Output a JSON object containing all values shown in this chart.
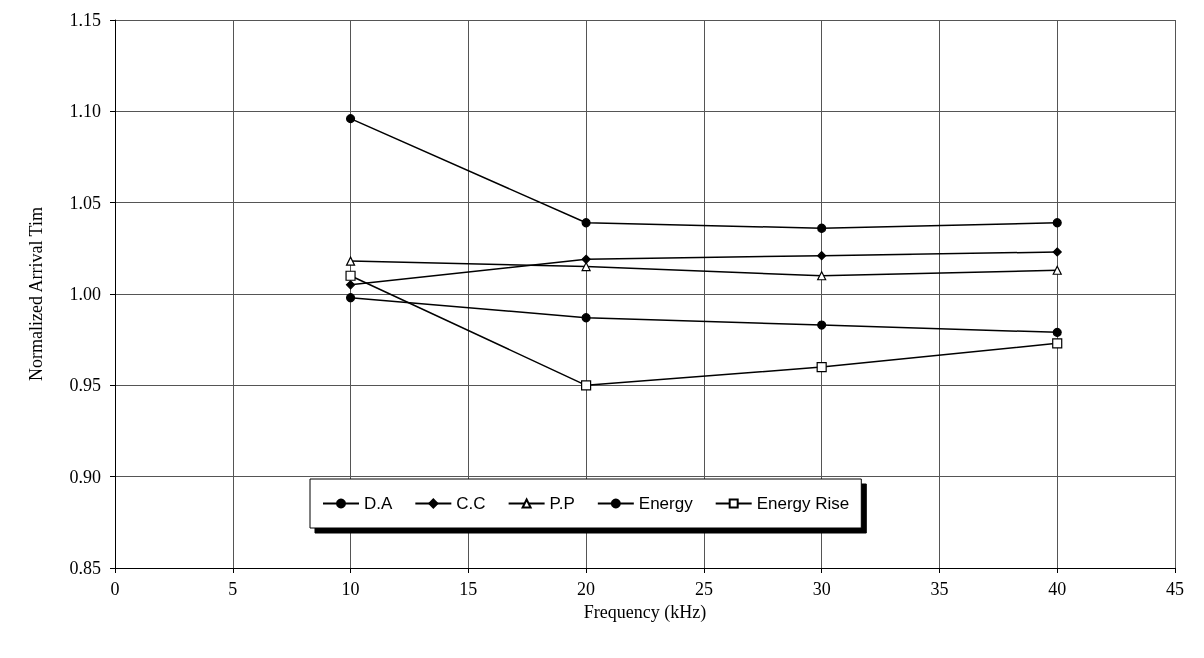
{
  "chart_data": {
    "type": "line",
    "xlabel": "Frequency (kHz)",
    "ylabel": "Normalized Arrival Tim",
    "x": [
      10,
      20,
      30,
      40
    ],
    "series": [
      {
        "name": "D.A",
        "color": "#000000",
        "marker": "circle",
        "values": [
          0.998,
          0.987,
          0.983,
          0.979
        ]
      },
      {
        "name": "C.C",
        "color": "#000000",
        "marker": "diamond",
        "values": [
          1.005,
          1.019,
          1.021,
          1.023
        ]
      },
      {
        "name": "P.P",
        "color": "#000000",
        "marker": "triangle",
        "values": [
          1.018,
          1.015,
          1.01,
          1.013
        ]
      },
      {
        "name": "Energy",
        "color": "#000000",
        "marker": "circle",
        "values": [
          1.096,
          1.039,
          1.036,
          1.039
        ]
      },
      {
        "name": "Energy Rise",
        "color": "#000000",
        "marker": "square",
        "values": [
          1.01,
          0.95,
          0.96,
          0.973
        ]
      }
    ],
    "xlim": [
      0,
      45
    ],
    "xticks": [
      0,
      5,
      10,
      15,
      20,
      25,
      30,
      35,
      40,
      45
    ],
    "ylim": [
      0.85,
      1.15
    ],
    "yticks": [
      {
        "value": 0.85,
        "label": "0.85"
      },
      {
        "value": 0.9,
        "label": "0.90"
      },
      {
        "value": 0.95,
        "label": "0.95"
      },
      {
        "value": 1.0,
        "label": "1.00"
      },
      {
        "value": 1.05,
        "label": "1.05"
      },
      {
        "value": 1.1,
        "label": "1.10"
      },
      {
        "value": 1.15,
        "label": "1.15"
      }
    ],
    "grid": true,
    "legend": "bottom",
    "line_style": "solid"
  }
}
